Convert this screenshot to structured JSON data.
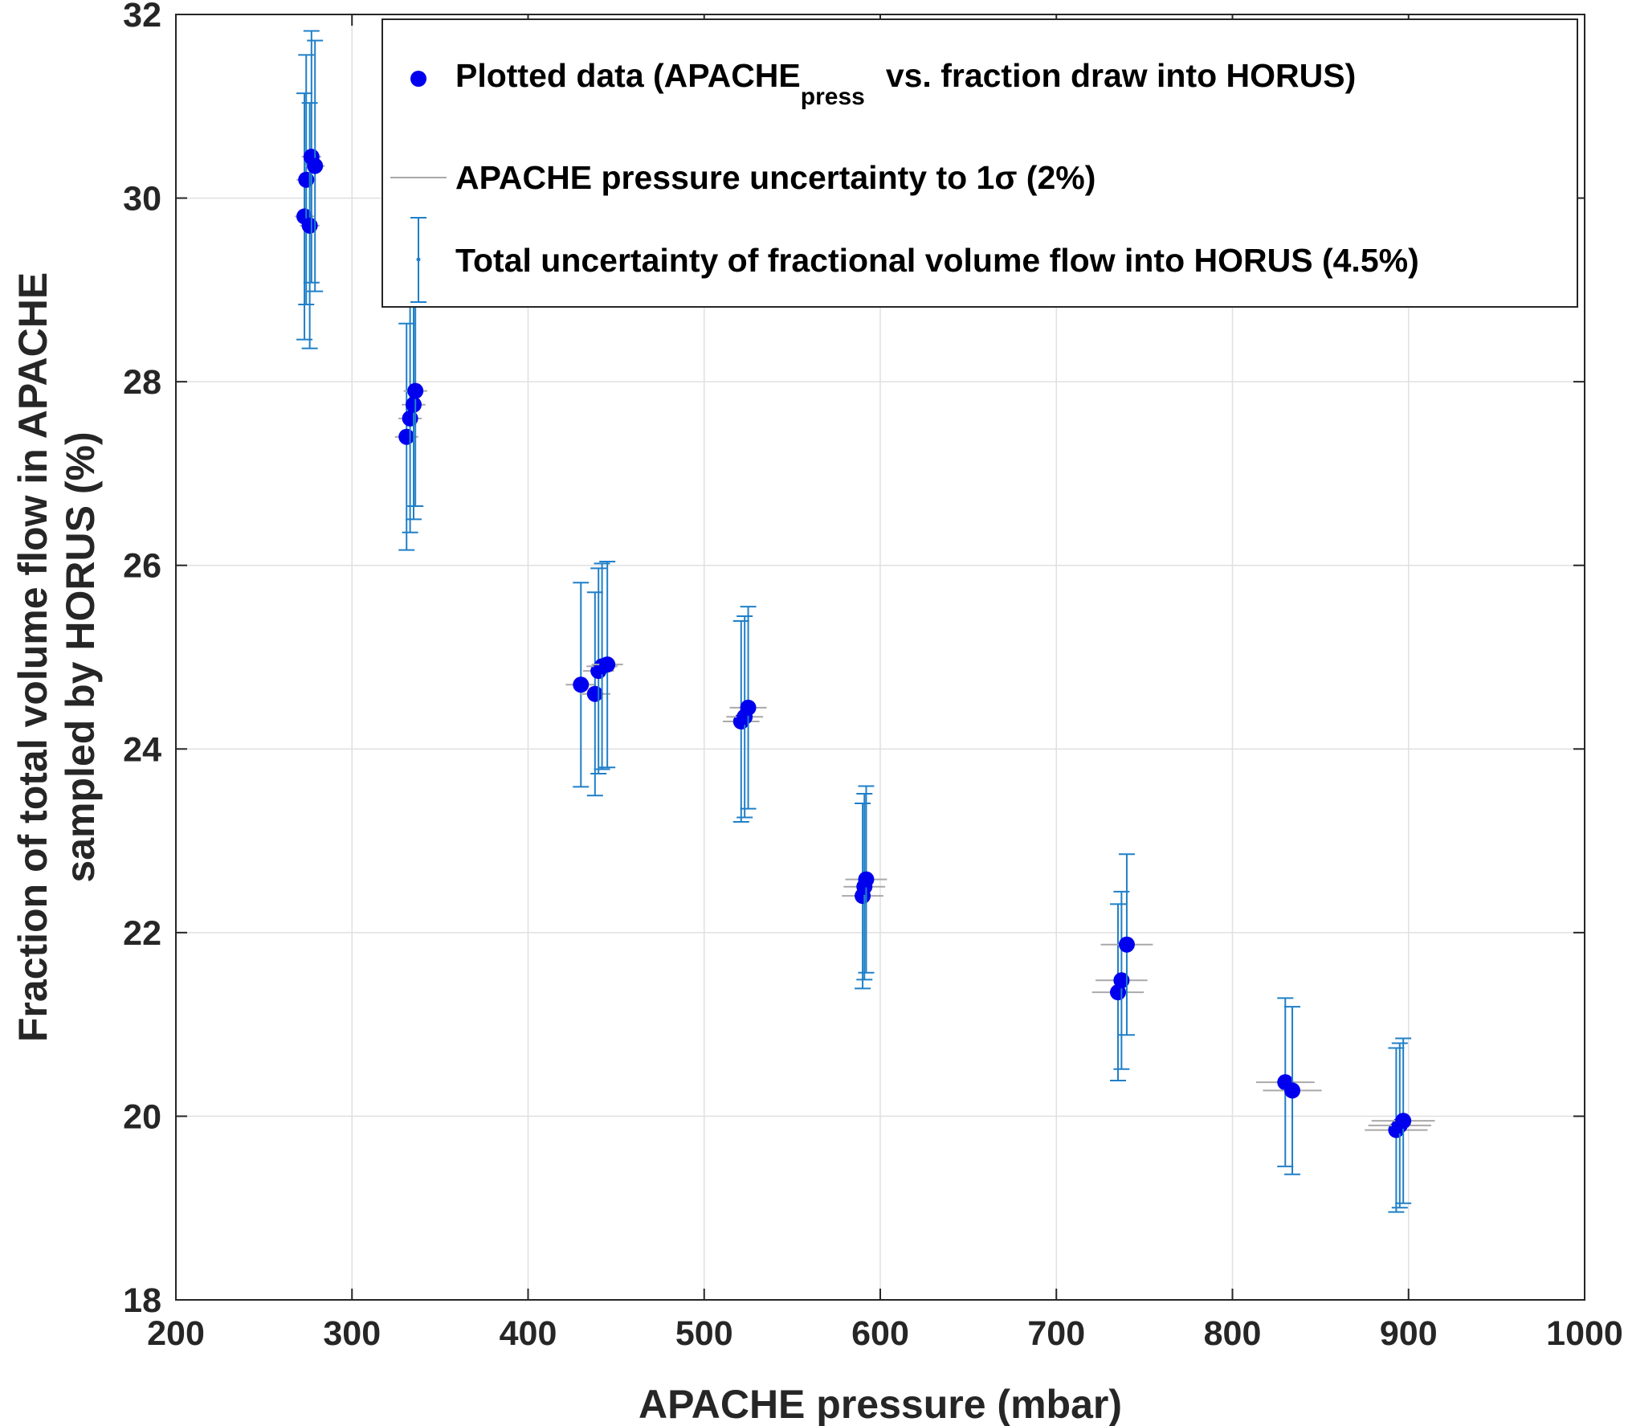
{
  "chart_data": {
    "type": "scatter",
    "xlabel": "APACHE pressure (mbar)",
    "ylabel_lines": [
      "Fraction of total volume flow in APACHE",
      "sampled by HORUS (%)"
    ],
    "xlim": [
      200,
      1000
    ],
    "ylim": [
      18,
      32
    ],
    "xticks": [
      "200",
      "300",
      "400",
      "500",
      "600",
      "700",
      "800",
      "900",
      "1000"
    ],
    "yticks": [
      "18",
      "20",
      "22",
      "24",
      "26",
      "28",
      "30",
      "32"
    ],
    "grid": true,
    "legend_position": "top-right",
    "legend": {
      "data_prefix": "Plotted data (APACHE",
      "data_sub": "press",
      "data_suffix": "vs. fraction draw into HORUS)",
      "pressure_uncertainty": "APACHE pressure uncertainty to 1σ  (2%)",
      "total_uncertainty": "Total uncertainty of fractional volume flow into HORUS (4.5%)"
    },
    "x_error_relative": 0.02,
    "y_error_relative": 0.045,
    "series": [
      {
        "points": [
          {
            "x": 273,
            "y": 29.8
          },
          {
            "x": 274,
            "y": 30.2
          },
          {
            "x": 276,
            "y": 29.7
          },
          {
            "x": 277,
            "y": 30.45
          },
          {
            "x": 279,
            "y": 30.35
          },
          {
            "x": 331,
            "y": 27.4
          },
          {
            "x": 333,
            "y": 27.6
          },
          {
            "x": 335,
            "y": 27.75
          },
          {
            "x": 336,
            "y": 27.9
          },
          {
            "x": 430,
            "y": 24.7
          },
          {
            "x": 438,
            "y": 24.6
          },
          {
            "x": 440,
            "y": 24.85
          },
          {
            "x": 442,
            "y": 24.9
          },
          {
            "x": 445,
            "y": 24.92
          },
          {
            "x": 521,
            "y": 24.3
          },
          {
            "x": 523,
            "y": 24.35
          },
          {
            "x": 525,
            "y": 24.45
          },
          {
            "x": 590,
            "y": 22.4
          },
          {
            "x": 591,
            "y": 22.5
          },
          {
            "x": 592,
            "y": 22.58
          },
          {
            "x": 735,
            "y": 21.35
          },
          {
            "x": 737,
            "y": 21.48
          },
          {
            "x": 740,
            "y": 21.87
          },
          {
            "x": 830,
            "y": 20.37
          },
          {
            "x": 834,
            "y": 20.28
          },
          {
            "x": 893,
            "y": 19.85
          },
          {
            "x": 895,
            "y": 19.9
          },
          {
            "x": 897,
            "y": 19.95
          }
        ]
      }
    ],
    "colors": {
      "marker": "#0000ee",
      "error_bar": "#1f7fc8",
      "x_error": "#a9a9a9",
      "grid": "#e0e0e0",
      "axis": "#262626"
    }
  }
}
